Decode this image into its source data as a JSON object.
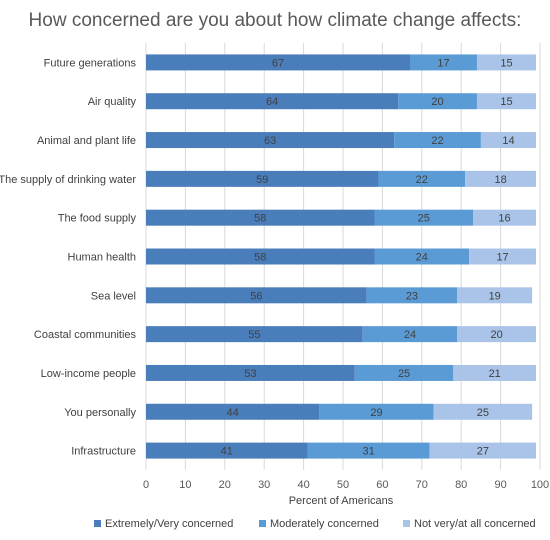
{
  "chart_data": {
    "type": "bar",
    "orientation": "horizontal",
    "stacked": true,
    "title": "How concerned are you about how climate change affects:",
    "xlabel": "Percent of Americans",
    "ylabel": "",
    "xlim": [
      0,
      100
    ],
    "xticks": [
      0,
      10,
      20,
      30,
      40,
      50,
      60,
      70,
      80,
      90,
      100
    ],
    "grid": true,
    "legend_position": "bottom",
    "categories": [
      "Future generations",
      "Air quality",
      "Animal and plant life",
      "The supply of drinking water",
      "The food supply",
      "Human health",
      "Sea level",
      "Coastal communities",
      "Low-income people",
      "You personally",
      "Infrastructure"
    ],
    "series": [
      {
        "name": "Extremely/Very concerned",
        "color": "#4a7ebb",
        "values": [
          67,
          64,
          63,
          59,
          58,
          58,
          56,
          55,
          53,
          44,
          41
        ]
      },
      {
        "name": "Moderately concerned",
        "color": "#5b9bd5",
        "values": [
          17,
          20,
          22,
          22,
          25,
          24,
          23,
          24,
          25,
          29,
          31
        ]
      },
      {
        "name": "Not very/at all concerned",
        "color": "#a9c4e8",
        "values": [
          15,
          15,
          14,
          18,
          16,
          17,
          19,
          20,
          21,
          25,
          27
        ]
      }
    ]
  }
}
